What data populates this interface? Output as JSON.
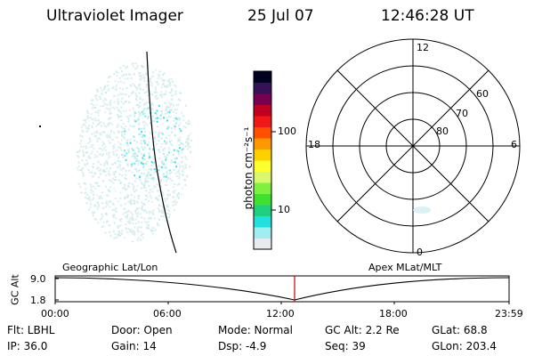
{
  "header": {
    "instrument": "Ultraviolet Imager",
    "date": "25 Jul 07",
    "time": "12:46:28 UT"
  },
  "colorbar": {
    "axis_label": "photon cm⁻²s⁻¹",
    "ticks": [
      "100",
      "10"
    ],
    "colors": [
      "#e8ecee",
      "#a0eef0",
      "#20e0e0",
      "#20d080",
      "#40e030",
      "#80f040",
      "#d8f870",
      "#ffff30",
      "#ffd000",
      "#ff9800",
      "#ff5000",
      "#f01818",
      "#c00020",
      "#780050",
      "#38105a",
      "#000020"
    ]
  },
  "polar": {
    "mlt_labels": [
      "12",
      "18",
      "6",
      "0"
    ],
    "lat_labels": [
      "60",
      "70",
      "80"
    ]
  },
  "projection_labels": {
    "left": "Geographic Lat/Lon",
    "right": "Apex MLat/MLT"
  },
  "altitude_plot": {
    "ylabel": "GC Alt",
    "y_ticks": [
      "9.0",
      "1.8"
    ],
    "x_ticks": [
      "00:00",
      "06:00",
      "12:00",
      "18:00",
      "23:59"
    ],
    "marker_color": "#c00000"
  },
  "info": {
    "filter": "Flt: LBHL",
    "door": "Door: Open",
    "mode": "Mode: Normal",
    "gc_alt": "GC Alt: 2.2 Re",
    "glat": "GLat:  68.8",
    "ip": "IP: 36.0",
    "gain": "Gain: 14",
    "dsp": "Dsp:    -4.9",
    "seq": "Seq: 39",
    "glon": "GLon: 203.4"
  }
}
